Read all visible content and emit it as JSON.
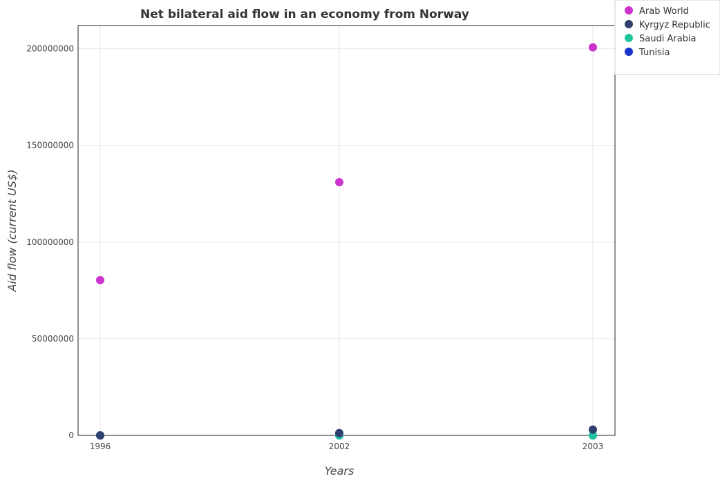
{
  "chart_data": {
    "type": "scatter",
    "title": "Net bilateral aid flow in an economy from Norway",
    "xlabel": "Years",
    "ylabel": "Aid flow (current US$)",
    "categories": [
      "1996",
      "2002",
      "2003"
    ],
    "ylim": [
      0,
      212000000
    ],
    "yticks": [
      0,
      50000000,
      100000000,
      150000000,
      200000000
    ],
    "ytick_labels": [
      "0",
      "50000000",
      "100000000",
      "150000000",
      "200000000"
    ],
    "grid": true,
    "legend_position": "top-right",
    "series": [
      {
        "name": "Arab World",
        "color": "#cc33cc",
        "values": [
          80300000,
          131000000,
          200700000
        ]
      },
      {
        "name": "Kyrgyz Republic",
        "color": "#2f3f6e",
        "values": [
          0,
          1200000,
          3000000
        ]
      },
      {
        "name": "Saudi Arabia",
        "color": "#20c5a0",
        "values": [
          0,
          0,
          0
        ]
      },
      {
        "name": "Tunisia",
        "color": "#1a33cc",
        "values": [
          0,
          0,
          0
        ]
      }
    ]
  }
}
